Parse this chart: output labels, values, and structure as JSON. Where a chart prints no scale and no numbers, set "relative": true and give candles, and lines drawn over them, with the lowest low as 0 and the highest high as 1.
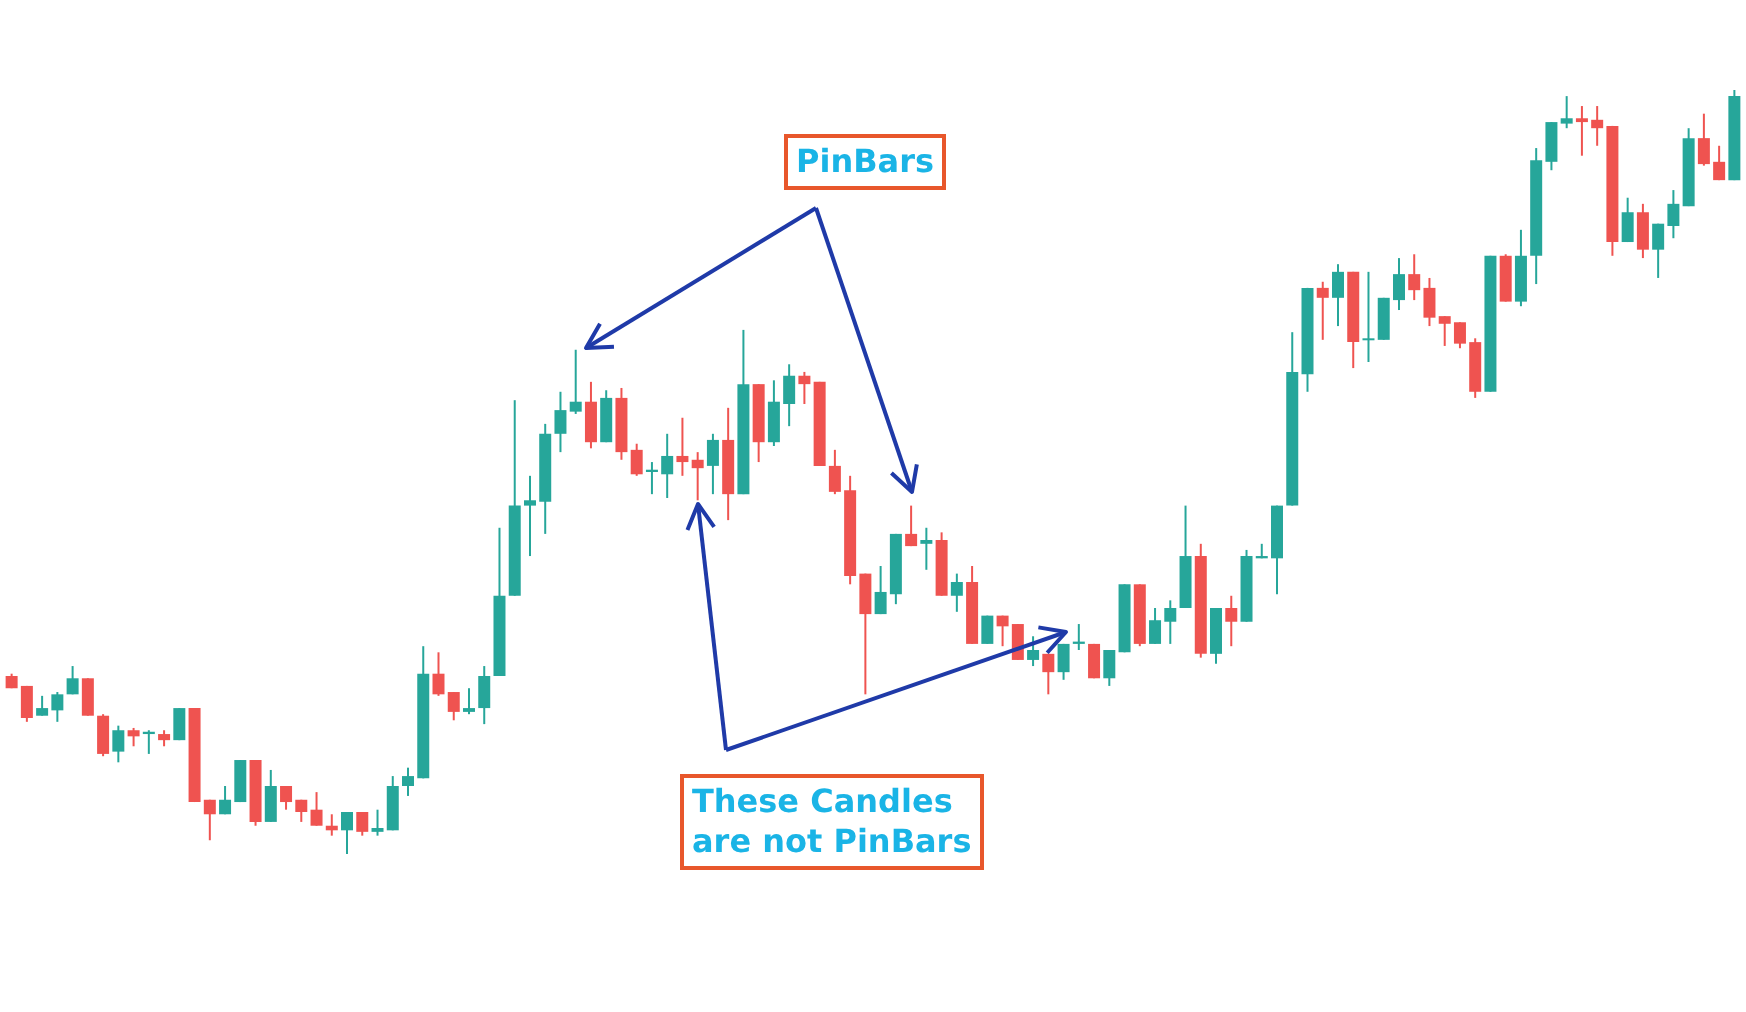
{
  "chart_data": {
    "type": "candlestick",
    "relative": true,
    "grid": false,
    "annotations": [
      "PinBars",
      "These Candles\nare not PinBars"
    ],
    "categories": [
      null,
      null,
      null,
      null,
      null,
      null,
      null,
      null,
      null,
      null,
      null,
      null,
      null,
      null,
      null,
      null,
      null,
      null,
      null,
      null,
      null,
      null,
      null,
      null,
      null,
      null,
      null,
      null,
      null,
      null,
      null,
      null,
      null,
      null,
      null,
      null,
      null,
      null,
      null,
      null,
      null,
      null,
      null,
      null,
      null,
      null,
      null,
      null,
      null,
      null,
      null,
      null,
      null,
      null,
      null,
      null,
      null,
      null,
      null,
      null,
      null,
      null,
      null,
      null,
      null,
      null,
      null,
      null,
      null,
      null,
      null,
      null,
      null,
      null,
      null,
      null,
      null,
      null,
      null,
      null,
      null,
      null,
      null,
      null,
      null,
      null,
      null,
      null,
      null,
      null,
      null,
      null,
      null,
      null,
      null,
      null,
      null,
      null,
      null,
      null,
      null,
      null,
      null,
      null,
      null,
      null,
      null,
      null,
      null,
      null,
      null,
      null,
      null,
      null
    ],
    "series": [
      {
        "colors": [
          "#ef5350",
          "#ef5350",
          "#26a69a",
          "#26a69a",
          "#26a69a",
          "#ef5350",
          "#ef5350",
          "#26a69a",
          "#ef5350",
          "#26a69a",
          "#ef5350",
          "#26a69a",
          "#ef5350",
          "#ef5350",
          "#26a69a",
          "#26a69a",
          "#ef5350",
          "#26a69a",
          "#ef5350",
          "#ef5350",
          "#ef5350",
          "#ef5350",
          "#26a69a",
          "#ef5350",
          "#26a69a",
          "#26a69a",
          "#26a69a",
          "#26a69a",
          "#ef5350",
          "#ef5350",
          "#26a69a",
          "#26a69a",
          "#26a69a",
          "#26a69a",
          "#26a69a",
          "#26a69a",
          "#26a69a",
          "#26a69a",
          "#ef5350",
          "#26a69a",
          "#ef5350",
          "#ef5350",
          "#26a69a",
          "#26a69a",
          "#ef5350",
          "#ef5350",
          "#26a69a",
          "#ef5350",
          "#26a69a",
          "#ef5350",
          "#26a69a",
          "#26a69a",
          "#ef5350",
          "#ef5350",
          "#ef5350",
          "#ef5350",
          "#ef5350",
          "#26a69a",
          "#26a69a",
          "#ef5350",
          "#26a69a",
          "#ef5350",
          "#26a69a",
          "#ef5350",
          "#26a69a",
          "#ef5350",
          "#ef5350",
          "#26a69a",
          "#ef5350",
          "#26a69a",
          "#26a69a",
          "#ef5350",
          "#26a69a",
          "#26a69a",
          "#ef5350",
          "#26a69a",
          "#26a69a",
          "#26a69a",
          "#ef5350",
          "#26a69a",
          "#ef5350",
          "#26a69a",
          "#26a69a",
          "#26a69a",
          "#26a69a",
          "#26a69a",
          "#ef5350",
          "#26a69a",
          "#ef5350",
          "#26a69a",
          "#26a69a",
          "#26a69a",
          "#ef5350",
          "#ef5350",
          "#ef5350",
          "#ef5350",
          "#ef5350",
          "#26a69a",
          "#ef5350",
          "#26a69a",
          "#26a69a",
          "#26a69a",
          "#26a69a",
          "#ef5350",
          "#ef5350",
          "#ef5350",
          "#26a69a",
          "#ef5350",
          "#26a69a",
          "#26a69a",
          "#26a69a",
          "#ef5350",
          "#ef5350",
          "#26a69a"
        ],
        "ohlc": [
          [
            0.233,
            0.236,
            0.217,
            0.217
          ],
          [
            0.22,
            0.22,
            0.173,
            0.178
          ],
          [
            0.181,
            0.207,
            0.181,
            0.191
          ],
          [
            0.188,
            0.212,
            0.173,
            0.209
          ],
          [
            0.209,
            0.246,
            0.209,
            0.23
          ],
          [
            0.23,
            0.23,
            0.181,
            0.181
          ],
          [
            0.181,
            0.183,
            0.128,
            0.131
          ],
          [
            0.134,
            0.168,
            0.12,
            0.162
          ],
          [
            0.162,
            0.165,
            0.141,
            0.154
          ],
          [
            0.157,
            0.162,
            0.131,
            0.16
          ],
          [
            0.157,
            0.162,
            0.141,
            0.149
          ],
          [
            0.149,
            0.191,
            0.149,
            0.191
          ],
          [
            0.191,
            0.191,
            0.068,
            0.068
          ],
          [
            0.071,
            0.071,
            0.018,
            0.052
          ],
          [
            0.052,
            0.089,
            0.052,
            0.071
          ],
          [
            0.068,
            0.123,
            0.068,
            0.123
          ],
          [
            0.123,
            0.123,
            0.037,
            0.042
          ],
          [
            0.042,
            0.11,
            0.042,
            0.089
          ],
          [
            0.089,
            0.089,
            0.058,
            0.068
          ],
          [
            0.071,
            0.071,
            0.042,
            0.055
          ],
          [
            0.058,
            0.081,
            0.037,
            0.037
          ],
          [
            0.037,
            0.052,
            0.024,
            0.031
          ],
          [
            0.031,
            0.055,
            0,
            0.055
          ],
          [
            0.055,
            0.055,
            0.024,
            0.029
          ],
          [
            0.029,
            0.058,
            0.024,
            0.034
          ],
          [
            0.031,
            0.102,
            0.031,
            0.089
          ],
          [
            0.089,
            0.113,
            0.076,
            0.102
          ],
          [
            0.099,
            0.272,
            0.099,
            0.236
          ],
          [
            0.236,
            0.264,
            0.207,
            0.209
          ],
          [
            0.212,
            0.212,
            0.175,
            0.186
          ],
          [
            0.186,
            0.217,
            0.183,
            0.191
          ],
          [
            0.191,
            0.246,
            0.17,
            0.233
          ],
          [
            0.233,
            0.427,
            0.233,
            0.338
          ],
          [
            0.338,
            0.594,
            0.338,
            0.456
          ],
          [
            0.456,
            0.495,
            0.39,
            0.463
          ],
          [
            0.461,
            0.563,
            0.419,
            0.55
          ],
          [
            0.55,
            0.605,
            0.526,
            0.581
          ],
          [
            0.579,
            0.66,
            0.576,
            0.592
          ],
          [
            0.592,
            0.618,
            0.531,
            0.539
          ],
          [
            0.539,
            0.607,
            0.539,
            0.597
          ],
          [
            0.597,
            0.61,
            0.516,
            0.526
          ],
          [
            0.529,
            0.537,
            0.495,
            0.497
          ],
          [
            0.5,
            0.513,
            0.471,
            0.503
          ],
          [
            0.497,
            0.55,
            0.466,
            0.521
          ],
          [
            0.521,
            0.571,
            0.495,
            0.513
          ],
          [
            0.516,
            0.526,
            0.463,
            0.505
          ],
          [
            0.508,
            0.55,
            0.471,
            0.542
          ],
          [
            0.542,
            0.584,
            0.437,
            0.471
          ],
          [
            0.471,
            0.686,
            0.471,
            0.615
          ],
          [
            0.615,
            0.615,
            0.513,
            0.539
          ],
          [
            0.539,
            0.62,
            0.534,
            0.592
          ],
          [
            0.589,
            0.641,
            0.56,
            0.626
          ],
          [
            0.626,
            0.631,
            0.589,
            0.615
          ],
          [
            0.618,
            0.618,
            0.508,
            0.508
          ],
          [
            0.508,
            0.529,
            0.471,
            0.474
          ],
          [
            0.476,
            0.495,
            0.353,
            0.364
          ],
          [
            0.367,
            0.367,
            0.209,
            0.314
          ],
          [
            0.314,
            0.377,
            0.314,
            0.343
          ],
          [
            0.34,
            0.419,
            0.327,
            0.419
          ],
          [
            0.419,
            0.456,
            0.403,
            0.403
          ],
          [
            0.406,
            0.427,
            0.372,
            0.411
          ],
          [
            0.411,
            0.421,
            0.338,
            0.338
          ],
          [
            0.338,
            0.367,
            0.317,
            0.356
          ],
          [
            0.356,
            0.377,
            0.275,
            0.275
          ],
          [
            0.275,
            0.312,
            0.275,
            0.312
          ],
          [
            0.312,
            0.312,
            0.272,
            0.298
          ],
          [
            0.301,
            0.301,
            0.254,
            0.254
          ],
          [
            0.254,
            0.285,
            0.246,
            0.267
          ],
          [
            0.262,
            0.262,
            0.209,
            0.238
          ],
          [
            0.238,
            0.275,
            0.228,
            0.275
          ],
          [
            0.275,
            0.301,
            0.267,
            0.278
          ],
          [
            0.275,
            0.275,
            0.23,
            0.23
          ],
          [
            0.23,
            0.267,
            0.22,
            0.267
          ],
          [
            0.264,
            0.353,
            0.264,
            0.353
          ],
          [
            0.353,
            0.353,
            0.272,
            0.275
          ],
          [
            0.275,
            0.322,
            0.275,
            0.306
          ],
          [
            0.304,
            0.332,
            0.275,
            0.322
          ],
          [
            0.322,
            0.456,
            0.322,
            0.39
          ],
          [
            0.39,
            0.406,
            0.257,
            0.262
          ],
          [
            0.262,
            0.322,
            0.249,
            0.322
          ],
          [
            0.322,
            0.338,
            0.272,
            0.304
          ],
          [
            0.304,
            0.398,
            0.304,
            0.39
          ],
          [
            0.387,
            0.406,
            0.387,
            0.39
          ],
          [
            0.387,
            0.456,
            0.34,
            0.456
          ],
          [
            0.456,
            0.683,
            0.456,
            0.631
          ],
          [
            0.628,
            0.741,
            0.605,
            0.741
          ],
          [
            0.741,
            0.749,
            0.673,
            0.728
          ],
          [
            0.728,
            0.772,
            0.691,
            0.762
          ],
          [
            0.762,
            0.762,
            0.636,
            0.67
          ],
          [
            0.673,
            0.762,
            0.644,
            0.675
          ],
          [
            0.673,
            0.728,
            0.673,
            0.728
          ],
          [
            0.725,
            0.78,
            0.712,
            0.759
          ],
          [
            0.759,
            0.785,
            0.725,
            0.738
          ],
          [
            0.741,
            0.754,
            0.691,
            0.702
          ],
          [
            0.704,
            0.704,
            0.665,
            0.694
          ],
          [
            0.696,
            0.696,
            0.662,
            0.668
          ],
          [
            0.67,
            0.675,
            0.597,
            0.605
          ],
          [
            0.605,
            0.783,
            0.605,
            0.783
          ],
          [
            0.783,
            0.785,
            0.723,
            0.723
          ],
          [
            0.723,
            0.817,
            0.717,
            0.783
          ],
          [
            0.783,
            0.924,
            0.746,
            0.908
          ],
          [
            0.906,
            0.958,
            0.895,
            0.958
          ],
          [
            0.956,
            0.992,
            0.95,
            0.963
          ],
          [
            0.963,
            0.979,
            0.914,
            0.958
          ],
          [
            0.961,
            0.979,
            0.927,
            0.95
          ],
          [
            0.953,
            0.953,
            0.783,
            0.801
          ],
          [
            0.801,
            0.859,
            0.801,
            0.84
          ],
          [
            0.84,
            0.851,
            0.78,
            0.791
          ],
          [
            0.791,
            0.825,
            0.754,
            0.825
          ],
          [
            0.822,
            0.869,
            0.806,
            0.851
          ],
          [
            0.848,
            0.95,
            0.848,
            0.937
          ],
          [
            0.937,
            0.969,
            0.901,
            0.903
          ],
          [
            0.906,
            0.927,
            0.882,
            0.882
          ],
          [
            0.882,
            1,
            0.882,
            0.992
          ]
        ]
      }
    ]
  }
}
